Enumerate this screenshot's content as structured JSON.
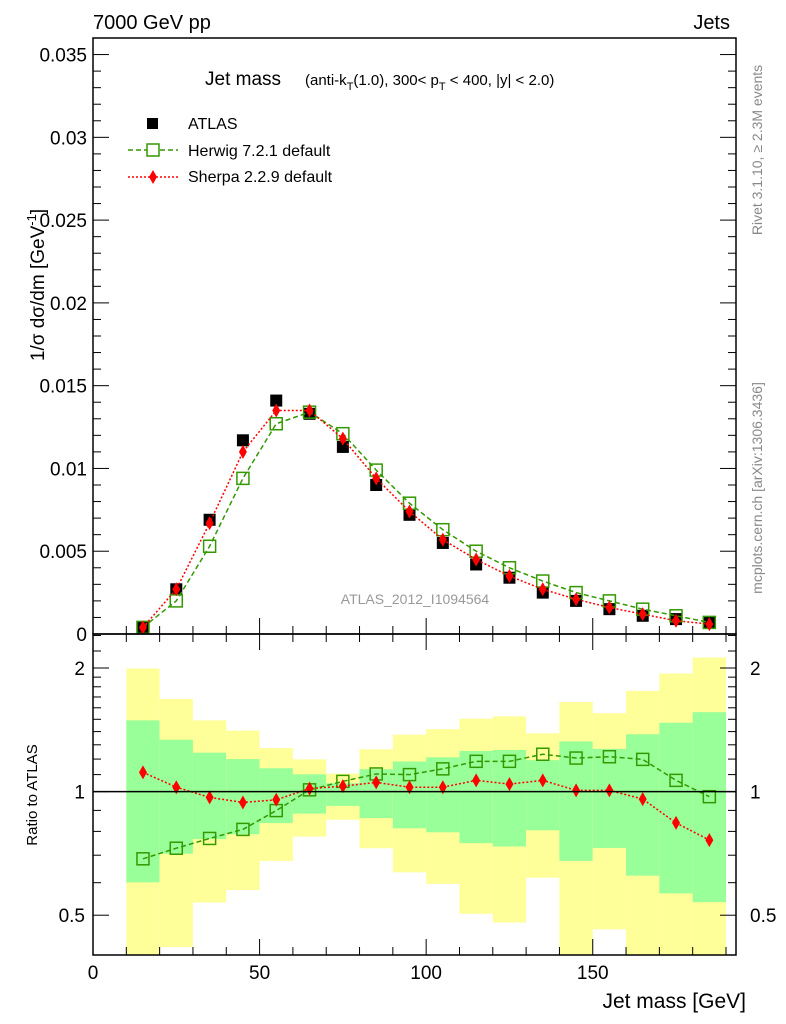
{
  "header": {
    "left": "7000 GeV pp",
    "right": "Jets"
  },
  "side": {
    "rivet": "Rivet 3.1.10, ≥ 2.3M events",
    "mcplots": "mcplots.cern.ch [arXiv:1306.3436]"
  },
  "chart_data": [
    {
      "type": "scatter",
      "title": "Jet mass",
      "title_sub": "(anti-k_T(1.0), 300< p_T < 400, |y| < 2.0)",
      "title_parts": {
        "a": "(anti-k",
        "b": "T",
        "c": "(1.0), 300< p",
        "d": "T",
        "e": " < 400, |y| < 2.0)"
      },
      "ylabel": "1/σ dσ/dm [GeV⁻¹]",
      "ylabel_parts": {
        "a": "1/σ dσ/dm [GeV",
        "b": "-1",
        "c": "]"
      },
      "watermark": "ATLAS_2012_I1094564",
      "xlim": [
        0,
        193
      ],
      "ylim": [
        0,
        0.036
      ],
      "yticks": [
        "0",
        "0.005",
        "0.01",
        "0.015",
        "0.02",
        "0.025",
        "0.03",
        "0.035"
      ],
      "x": [
        15,
        25,
        35,
        45,
        55,
        65,
        75,
        85,
        95,
        105,
        115,
        125,
        135,
        145,
        155,
        165,
        175,
        185
      ],
      "series": [
        {
          "name": "ATLAS",
          "color": "#000000",
          "values": [
            0.0004,
            0.0027,
            0.0069,
            0.0117,
            0.0141,
            0.0133,
            0.0113,
            0.009,
            0.0072,
            0.0055,
            0.0042,
            0.0034,
            0.0025,
            0.002,
            0.0015,
            0.0011,
            0.0009,
            0.0007
          ]
        },
        {
          "name": "Herwig 7.2.1 default",
          "color": "#339900",
          "values": [
            0.0004,
            0.002,
            0.0053,
            0.0094,
            0.0127,
            0.0134,
            0.0121,
            0.0099,
            0.0079,
            0.0063,
            0.005,
            0.004,
            0.0032,
            0.0025,
            0.002,
            0.0015,
            0.0011,
            0.0007
          ]
        },
        {
          "name": "Sherpa 2.2.9 default",
          "color": "#ff0000",
          "values": [
            0.0004,
            0.0027,
            0.0067,
            0.011,
            0.0135,
            0.0135,
            0.0118,
            0.0094,
            0.0074,
            0.0057,
            0.0045,
            0.0035,
            0.0027,
            0.0021,
            0.0016,
            0.0012,
            0.0008,
            0.0006
          ]
        }
      ]
    },
    {
      "type": "line",
      "ylabel": "Ratio to ATLAS",
      "xlabel": "Jet mass [GeV]",
      "yscale": "log",
      "ylim": [
        0.4,
        2.42
      ],
      "xlim": [
        0,
        193
      ],
      "xticks": [
        "0",
        "50",
        "100",
        "150"
      ],
      "xtick_values": [
        0,
        50,
        100,
        150
      ],
      "yticks": [
        "0.5",
        "1",
        "2"
      ],
      "ytick_values": [
        0.5,
        1,
        2
      ],
      "bin_edges": [
        10,
        20,
        30,
        40,
        50,
        60,
        70,
        80,
        90,
        100,
        110,
        120,
        130,
        140,
        150,
        160,
        170,
        180,
        190
      ],
      "band_inner": {
        "upper": [
          1.491,
          1.338,
          1.244,
          1.2,
          1.14,
          1.102,
          1.048,
          1.134,
          1.184,
          1.212,
          1.256,
          1.263,
          1.193,
          1.325,
          1.271,
          1.379,
          1.471,
          1.561
        ],
        "lower": [
          0.601,
          0.706,
          0.766,
          0.787,
          0.838,
          0.884,
          0.923,
          0.862,
          0.814,
          0.796,
          0.749,
          0.735,
          0.805,
          0.678,
          0.729,
          0.624,
          0.565,
          0.538
        ],
        "color": "#99ff99"
      },
      "band_outer": {
        "upper": [
          1.994,
          1.681,
          1.491,
          1.408,
          1.276,
          1.198,
          1.106,
          1.268,
          1.376,
          1.419,
          1.505,
          1.525,
          1.387,
          1.652,
          1.552,
          1.759,
          1.939,
          2.12
        ],
        "lower": [
          0.35,
          0.418,
          0.537,
          0.576,
          0.678,
          0.777,
          0.854,
          0.728,
          0.636,
          0.596,
          0.504,
          0.48,
          0.617,
          0.35,
          0.462,
          0.35,
          0.35,
          0.35
        ],
        "color": "#ffff99"
      },
      "series": [
        {
          "name": "Herwig 7.2.1 default",
          "values": [
            0.686,
            0.728,
            0.769,
            0.809,
            0.899,
            1.01,
            1.059,
            1.104,
            1.1,
            1.136,
            1.185,
            1.185,
            1.233,
            1.207,
            1.216,
            1.198,
            1.065,
            0.972
          ]
        },
        {
          "name": "Sherpa 2.2.9 default",
          "values": [
            1.114,
            1.025,
            0.968,
            0.941,
            0.955,
            1.017,
            1.031,
            1.053,
            1.025,
            1.025,
            1.065,
            1.043,
            1.065,
            1.007,
            1.007,
            0.959,
            0.839,
            0.762
          ]
        }
      ]
    }
  ]
}
